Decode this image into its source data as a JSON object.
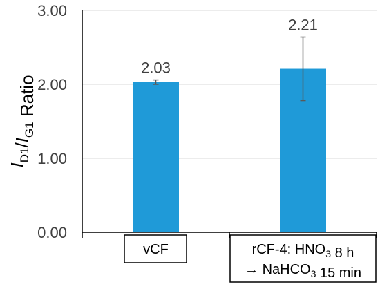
{
  "chart_data": {
    "type": "bar",
    "categories": [
      "vCF",
      "rCF-4: HNO3 8 h → NaHCO3 15 min"
    ],
    "category_labels": [
      {
        "lines": [
          [
            {
              "text": "vCF"
            }
          ]
        ]
      },
      {
        "lines": [
          [
            {
              "text": "rCF-4: HNO"
            },
            {
              "text": "3",
              "sub": true
            },
            {
              "text": " 8 h"
            }
          ],
          [
            {
              "text": "→ NaHCO"
            },
            {
              "text": "3",
              "sub": true
            },
            {
              "text": " 15 min"
            }
          ]
        ]
      }
    ],
    "values": [
      2.03,
      2.21
    ],
    "value_labels": [
      "2.03",
      "2.21"
    ],
    "error_bars": [
      0.03,
      0.43
    ],
    "title": "",
    "xlabel": "",
    "ylabel_parts": [
      {
        "text": "I",
        "italic": true
      },
      {
        "text": "D1",
        "sub": true
      },
      {
        "text": "/"
      },
      {
        "text": "I",
        "italic": true
      },
      {
        "text": "G1",
        "sub": true
      },
      {
        "text": " Ratio"
      }
    ],
    "ylim": [
      0,
      3
    ],
    "yticks": [
      0,
      1,
      2,
      3
    ],
    "ytick_labels": [
      "0.00",
      "1.00",
      "2.00",
      "3.00"
    ],
    "grid": true,
    "bar_color": "#1f9ad8",
    "axis_color": "#000000",
    "grid_color": "#d9d9d9",
    "text_color": "#404040",
    "errorbar_color": "#595959"
  }
}
